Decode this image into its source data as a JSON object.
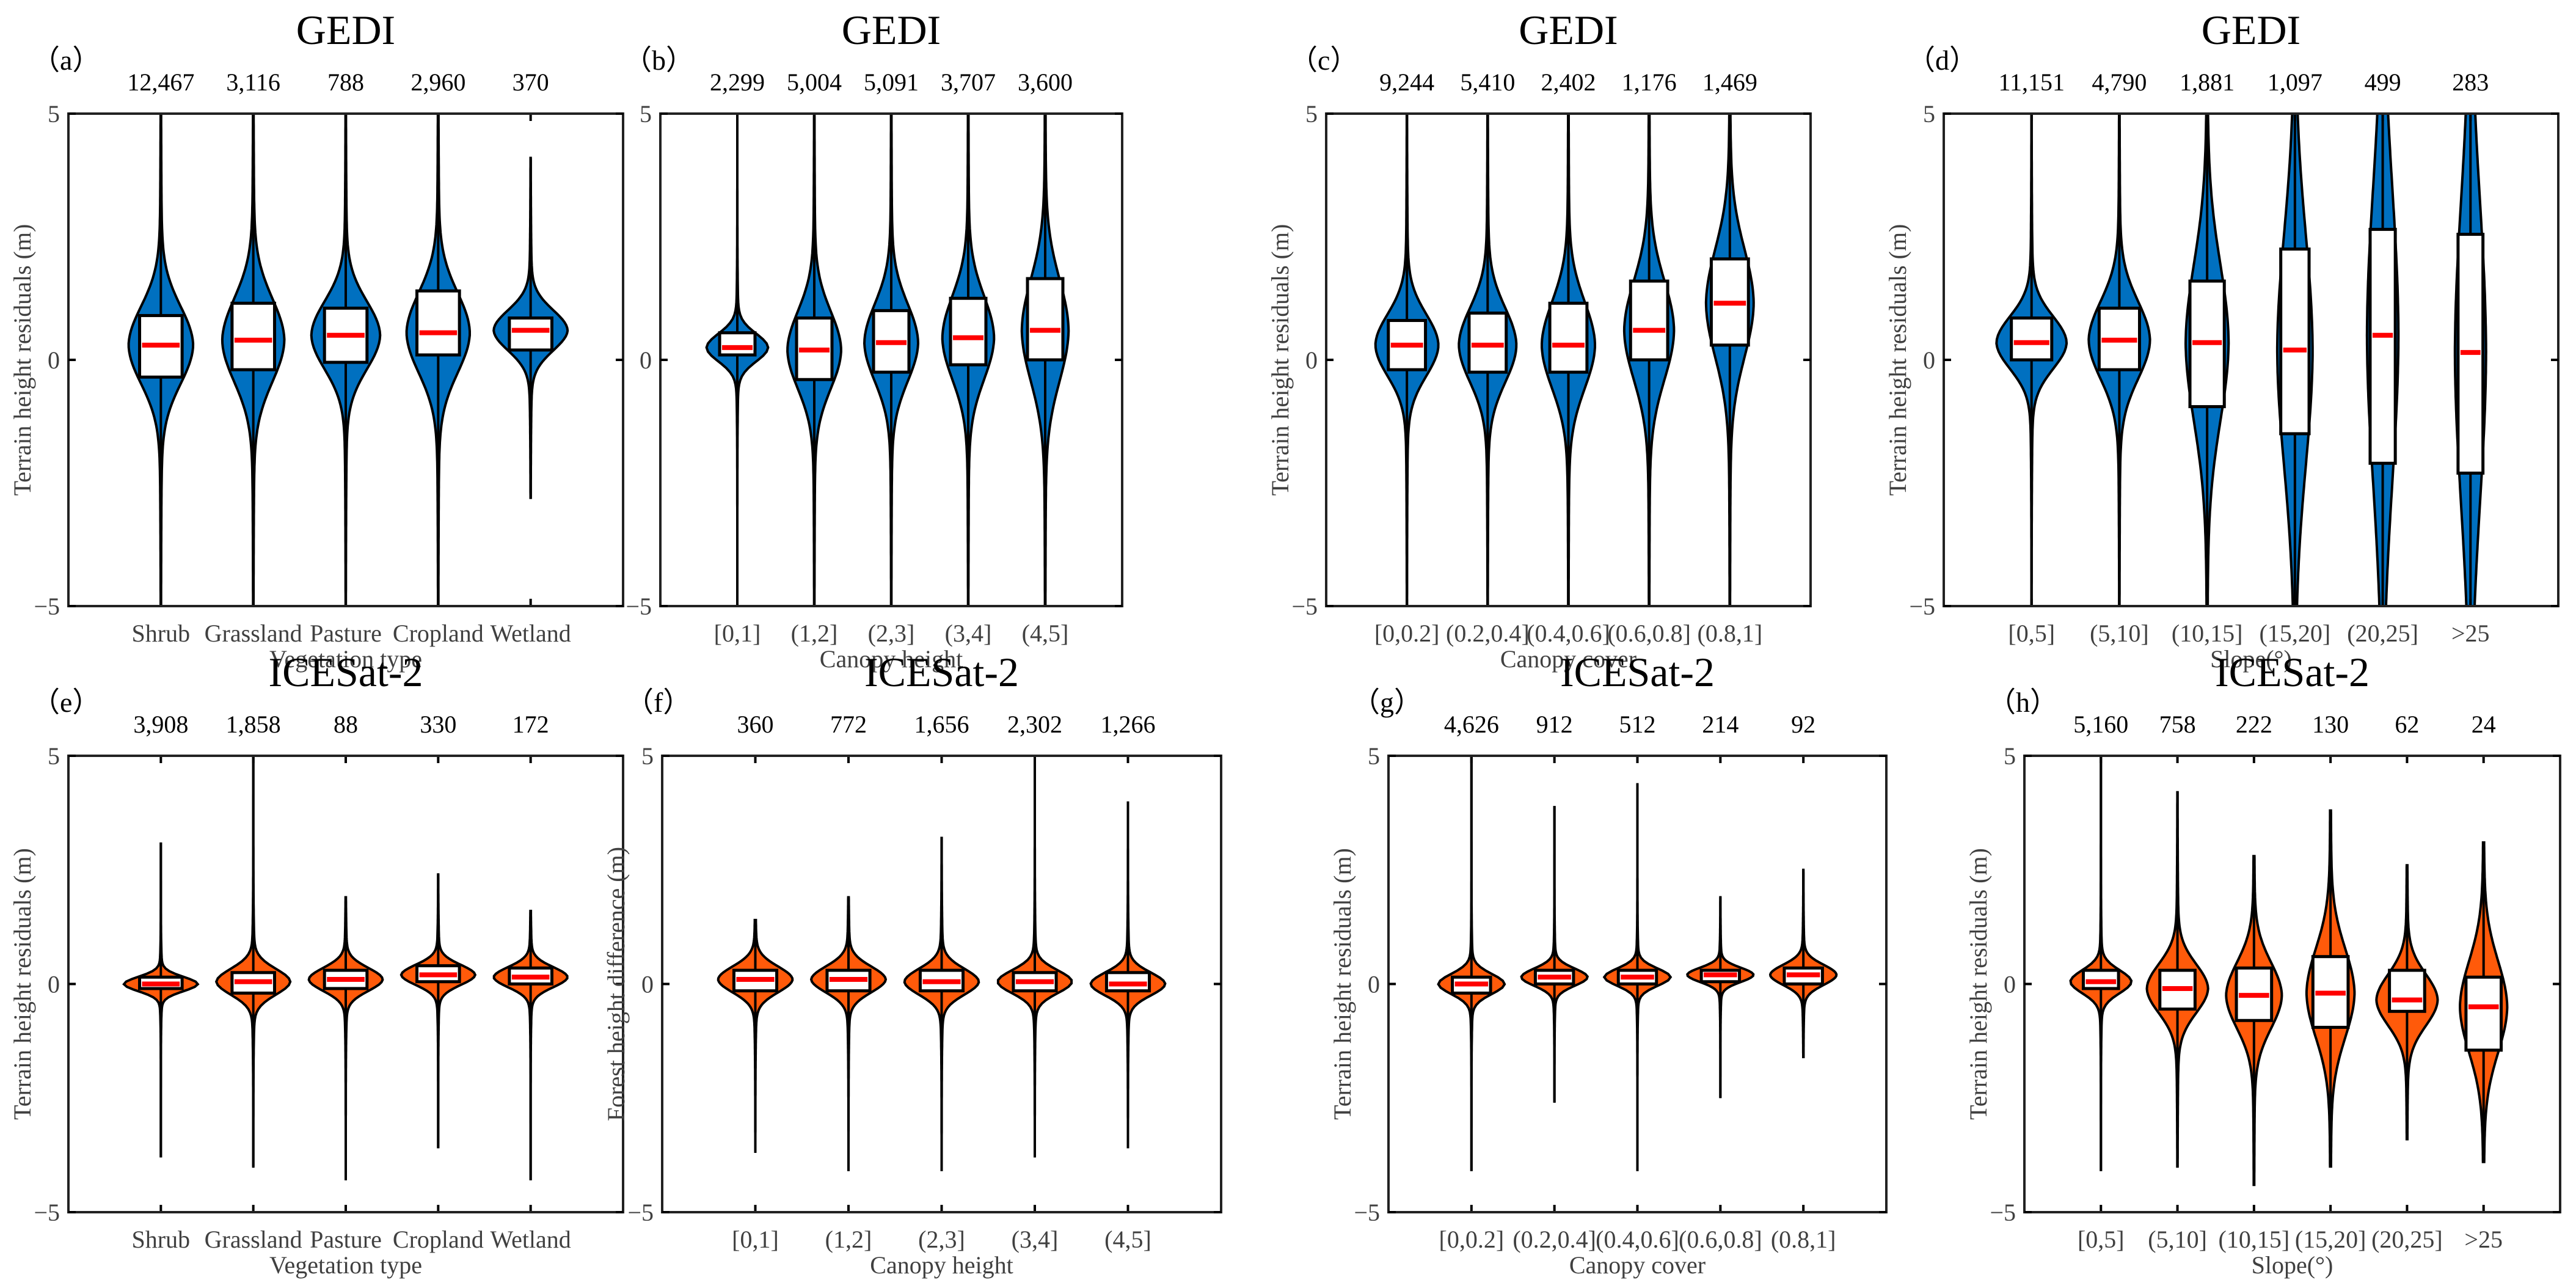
{
  "colors": {
    "gedi": "#0070C0",
    "icesat": "#FF5A0A",
    "median": "#FF0000",
    "box": "#FFFFFF",
    "outline": "#000000"
  },
  "chart_data": [
    {
      "type": "violin",
      "panel_label": "（a）",
      "title": "GEDI",
      "xlabel": "Vegetation type",
      "ylabel": "Terrain height residuals (m)",
      "ylim": [
        -5,
        5
      ],
      "yticks": [
        "5",
        "0",
        "−5"
      ],
      "color_key": "gedi",
      "categories": [
        "Shrub",
        "Grassland",
        "Pasture",
        "Cropland",
        "Wetland"
      ],
      "counts": [
        "12,467",
        "3,116",
        "788",
        "2,960",
        "370"
      ],
      "median": [
        0.3,
        0.4,
        0.5,
        0.55,
        0.6
      ],
      "q1": [
        -0.35,
        -0.2,
        -0.05,
        0.1,
        0.2
      ],
      "q3": [
        0.9,
        1.15,
        1.05,
        1.4,
        0.85
      ],
      "min": [
        -5,
        -5,
        -5,
        -5,
        -2.8
      ],
      "max": [
        5,
        5,
        5,
        5,
        4.1
      ]
    },
    {
      "type": "violin",
      "panel_label": "（b）",
      "title": "GEDI",
      "xlabel": "Canopy height",
      "ylabel": "",
      "ylim": [
        -5,
        5
      ],
      "yticks": [
        "5",
        "0",
        "−5"
      ],
      "color_key": "gedi",
      "categories": [
        "[0,1]",
        "(1,2]",
        "(2,3]",
        "(3,4]",
        "(4,5]"
      ],
      "counts": [
        "2,299",
        "5,004",
        "5,091",
        "3,707",
        "3,600"
      ],
      "median": [
        0.25,
        0.2,
        0.35,
        0.45,
        0.6
      ],
      "q1": [
        0.1,
        -0.4,
        -0.25,
        -0.1,
        0
      ],
      "q3": [
        0.55,
        0.85,
        1.0,
        1.25,
        1.65
      ],
      "min": [
        -5,
        -5,
        -5,
        -5,
        -5
      ],
      "max": [
        5,
        5,
        5,
        5,
        5
      ]
    },
    {
      "type": "violin",
      "panel_label": "（c）",
      "title": "GEDI",
      "xlabel": "Canopy cover",
      "ylabel": "Terrain height residuals (m)",
      "ylim": [
        -5,
        5
      ],
      "yticks": [
        "5",
        "0",
        "−5"
      ],
      "color_key": "gedi",
      "categories": [
        "[0,0.2]",
        "(0.2,0.4]",
        "(0.4,0.6]",
        "(0.6,0.8]",
        "(0.8,1]"
      ],
      "counts": [
        "9,244",
        "5,410",
        "2,402",
        "1,176",
        "1,469"
      ],
      "median": [
        0.3,
        0.3,
        0.3,
        0.6,
        1.15
      ],
      "q1": [
        -0.2,
        -0.25,
        -0.25,
        0,
        0.3
      ],
      "q3": [
        0.8,
        0.95,
        1.15,
        1.6,
        2.05
      ],
      "min": [
        -5,
        -5,
        -5,
        -5,
        -5
      ],
      "max": [
        5,
        5,
        5,
        5,
        5
      ]
    },
    {
      "type": "violin",
      "panel_label": "（d）",
      "title": "GEDI",
      "xlabel": "Slope(°)",
      "ylabel": "Terrain height residuals (m)",
      "ylim": [
        -5,
        5
      ],
      "yticks": [
        "5",
        "0",
        "−5"
      ],
      "color_key": "gedi",
      "categories": [
        "[0,5]",
        "(5,10]",
        "(10,15]",
        "(15,20]",
        "(20,25]",
        ">25"
      ],
      "counts": [
        "11,151",
        "4,790",
        "1,881",
        "1,097",
        "499",
        "283"
      ],
      "median": [
        0.35,
        0.4,
        0.35,
        0.2,
        0.5,
        0.15
      ],
      "q1": [
        0,
        -0.2,
        -0.95,
        -1.5,
        -2.1,
        -2.3
      ],
      "q3": [
        0.85,
        1.05,
        1.6,
        2.25,
        2.65,
        2.55
      ],
      "min": [
        -5,
        -5,
        -5,
        -5,
        -5,
        -5
      ],
      "max": [
        5,
        5,
        5,
        5,
        5,
        5
      ]
    },
    {
      "type": "violin",
      "panel_label": "（e）",
      "title": "ICESat-2",
      "xlabel": "Vegetation type",
      "ylabel": "Terrain height residuals (m)",
      "ylim": [
        -5,
        5
      ],
      "yticks": [
        "5",
        "0",
        "−5"
      ],
      "color_key": "icesat",
      "categories": [
        "Shrub",
        "Grassland",
        "Pasture",
        "Cropland",
        "Wetland"
      ],
      "counts": [
        "3,908",
        "1,858",
        "88",
        "330",
        "172"
      ],
      "median": [
        0.0,
        0.05,
        0.1,
        0.2,
        0.15
      ],
      "q1": [
        -0.1,
        -0.2,
        -0.1,
        0.05,
        0
      ],
      "q3": [
        0.15,
        0.25,
        0.3,
        0.4,
        0.35
      ],
      "min": [
        -3.8,
        -4.0,
        -4.3,
        -3.6,
        -4.3
      ],
      "max": [
        3.1,
        5,
        1.9,
        2.4,
        1.6
      ]
    },
    {
      "type": "violin",
      "panel_label": "（f）",
      "title": "ICESat-2",
      "xlabel": "Canopy height",
      "ylabel": "Forest height difference (m)",
      "ylim": [
        -5,
        5
      ],
      "yticks": [
        "5",
        "0",
        "−5"
      ],
      "color_key": "icesat",
      "categories": [
        "[0,1]",
        "(1,2]",
        "(2,3]",
        "(3,4]",
        "(4,5]"
      ],
      "counts": [
        "360",
        "772",
        "1,656",
        "2,302",
        "1,266"
      ],
      "median": [
        0.1,
        0.1,
        0.05,
        0.05,
        0
      ],
      "q1": [
        -0.15,
        -0.15,
        -0.15,
        -0.15,
        -0.15
      ],
      "q3": [
        0.3,
        0.3,
        0.3,
        0.25,
        0.25
      ],
      "min": [
        -3.7,
        -4.1,
        -4.1,
        -3.8,
        -3.6
      ],
      "max": [
        1.4,
        1.9,
        3.2,
        5,
        4.0
      ]
    },
    {
      "type": "violin",
      "panel_label": "（g）",
      "title": "ICESat-2",
      "xlabel": "Canopy cover",
      "ylabel": "Terrain height residuals (m)",
      "ylim": [
        -5,
        5
      ],
      "yticks": [
        "5",
        "0",
        "−5"
      ],
      "color_key": "icesat",
      "categories": [
        "[0,0.2]",
        "(0.2,0.4]",
        "(0.4,0.6]",
        "(0.6,0.8]",
        "(0.8,1]"
      ],
      "counts": [
        "4,626",
        "912",
        "512",
        "214",
        "92"
      ],
      "median": [
        0,
        0.15,
        0.15,
        0.2,
        0.2
      ],
      "q1": [
        -0.2,
        0,
        0,
        0.05,
        0
      ],
      "q3": [
        0.15,
        0.3,
        0.3,
        0.3,
        0.35
      ],
      "min": [
        -4.1,
        -2.6,
        -4.1,
        -2.5,
        -1.6
      ],
      "max": [
        5,
        3.9,
        4.4,
        1.9,
        2.5
      ]
    },
    {
      "type": "violin",
      "panel_label": "（h）",
      "title": "ICESat-2",
      "xlabel": "Slope(°)",
      "ylabel": "Terrain height residuals (m)",
      "ylim": [
        -5,
        5
      ],
      "yticks": [
        "5",
        "0",
        "−5"
      ],
      "color_key": "icesat",
      "categories": [
        "[0,5]",
        "(5,10]",
        "(10,15]",
        "(15,20]",
        "(20,25]",
        ">25"
      ],
      "counts": [
        "5,160",
        "758",
        "222",
        "130",
        "62",
        "24"
      ],
      "median": [
        0.05,
        -0.1,
        -0.25,
        -0.2,
        -0.35,
        -0.5
      ],
      "q1": [
        -0.1,
        -0.55,
        -0.8,
        -0.95,
        -0.6,
        -1.45
      ],
      "q3": [
        0.3,
        0.3,
        0.35,
        0.6,
        0.3,
        0.15
      ],
      "min": [
        -4.1,
        -4.0,
        -4.4,
        -4.0,
        -3.4,
        -3.9
      ],
      "max": [
        5,
        4.2,
        2.8,
        3.8,
        2.6,
        3.1
      ]
    }
  ]
}
